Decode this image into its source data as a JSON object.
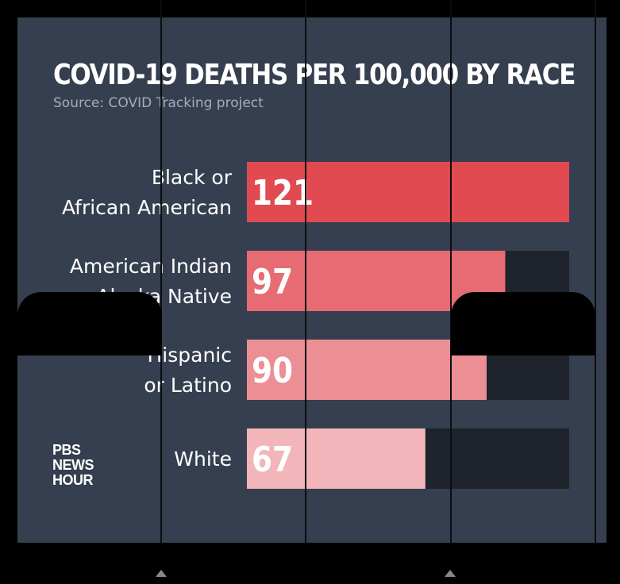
{
  "chart_data": {
    "type": "bar",
    "orientation": "horizontal",
    "title": "COVID-19 DEATHS PER 100,000 BY RACE",
    "subtitle": "Source: COVID Tracking project",
    "categories": [
      [
        "Black or",
        "African American"
      ],
      [
        "American Indian",
        "or Alaska Native"
      ],
      [
        "Hispanic",
        "or Latino"
      ],
      [
        "White"
      ]
    ],
    "values": [
      121,
      97,
      90,
      67
    ],
    "xlim": [
      0,
      121
    ],
    "bar_colors": [
      "#e14a51",
      "#e76b73",
      "#eb8f95",
      "#f1b5ba"
    ],
    "track_color": "#1e232c",
    "grid": false,
    "legend": "none"
  },
  "branding": {
    "logo_lines": [
      "PBS",
      "NEWS",
      "HOUR"
    ]
  },
  "colors": {
    "background": "#363f4f",
    "frame": "#000000"
  }
}
